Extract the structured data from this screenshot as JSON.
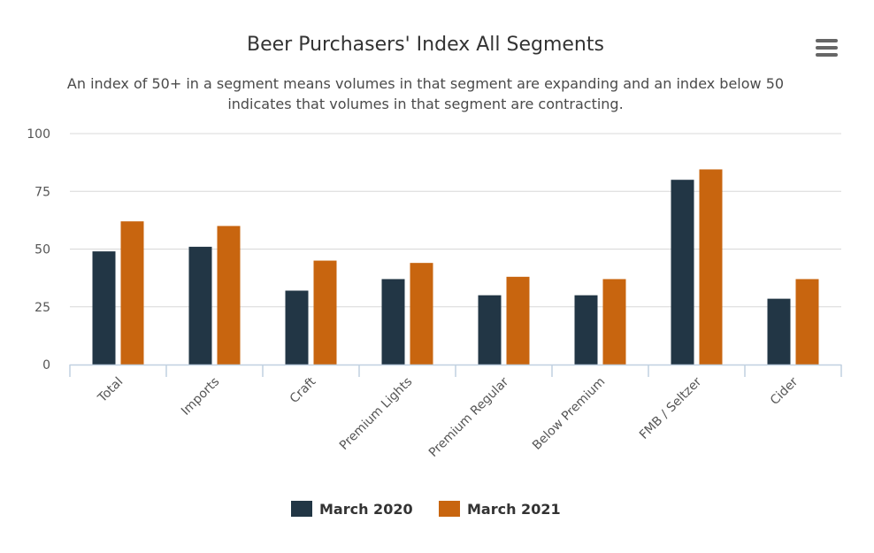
{
  "colors": {
    "series_1": "#223645",
    "series_2": "#c8650f",
    "grid": "#d8d8d8",
    "axis": "#c0d0e0",
    "menu_icon": "#666666"
  },
  "menu": {
    "icon": "hamburger-menu-icon"
  },
  "chart_data": {
    "type": "bar",
    "title": "Beer Purchasers' Index All Segments",
    "subtitle_lines": [
      "An index of 50+ in a segment means volumes in that segment are expanding and an index below 50",
      "indicates that volumes in that segment are contracting."
    ],
    "categories": [
      "Total",
      "Imports",
      "Craft",
      "Premium Lights",
      "Premium Regular",
      "Below Premium",
      "FMB / Seltzer",
      "Cider"
    ],
    "series": [
      {
        "name": "March 2020",
        "values": [
          49,
          51,
          32,
          37,
          30,
          30,
          80,
          28.5
        ]
      },
      {
        "name": "March 2021",
        "values": [
          62,
          60,
          45,
          44,
          38,
          37,
          84.5,
          37
        ]
      }
    ],
    "ylim": [
      0,
      100
    ],
    "yticks": [
      "0",
      "25",
      "50",
      "75",
      "100"
    ],
    "ytick_values": [
      0,
      25,
      50,
      75,
      100
    ],
    "xlabel": "",
    "ylabel": "",
    "grid": true,
    "legend_position": "bottom-center"
  }
}
